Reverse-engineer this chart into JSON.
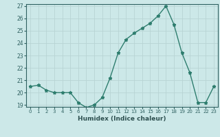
{
  "x": [
    0,
    1,
    2,
    3,
    4,
    5,
    6,
    7,
    8,
    9,
    10,
    11,
    12,
    13,
    14,
    15,
    16,
    17,
    18,
    19,
    20,
    21,
    22,
    23
  ],
  "y": [
    20.5,
    20.6,
    20.2,
    20.0,
    20.0,
    20.0,
    19.2,
    18.8,
    19.0,
    19.6,
    21.2,
    23.2,
    24.3,
    24.8,
    25.2,
    25.6,
    26.2,
    27.0,
    25.5,
    23.2,
    21.6,
    19.2,
    19.2,
    20.5
  ],
  "xlabel": "Humidex (Indice chaleur)",
  "ylim": [
    19,
    27
  ],
  "xlim": [
    -0.5,
    23.5
  ],
  "yticks": [
    19,
    20,
    21,
    22,
    23,
    24,
    25,
    26,
    27
  ],
  "xticks": [
    0,
    1,
    2,
    3,
    4,
    5,
    6,
    7,
    8,
    9,
    10,
    11,
    12,
    13,
    14,
    15,
    16,
    17,
    18,
    19,
    20,
    21,
    22,
    23
  ],
  "line_color": "#2e7d6e",
  "marker": "*",
  "bg_color": "#cce8e8",
  "grid_color": "#b8d4d4",
  "tick_color": "#2e6060",
  "xlabel_color": "#2e5050",
  "spine_color": "#2e6060"
}
